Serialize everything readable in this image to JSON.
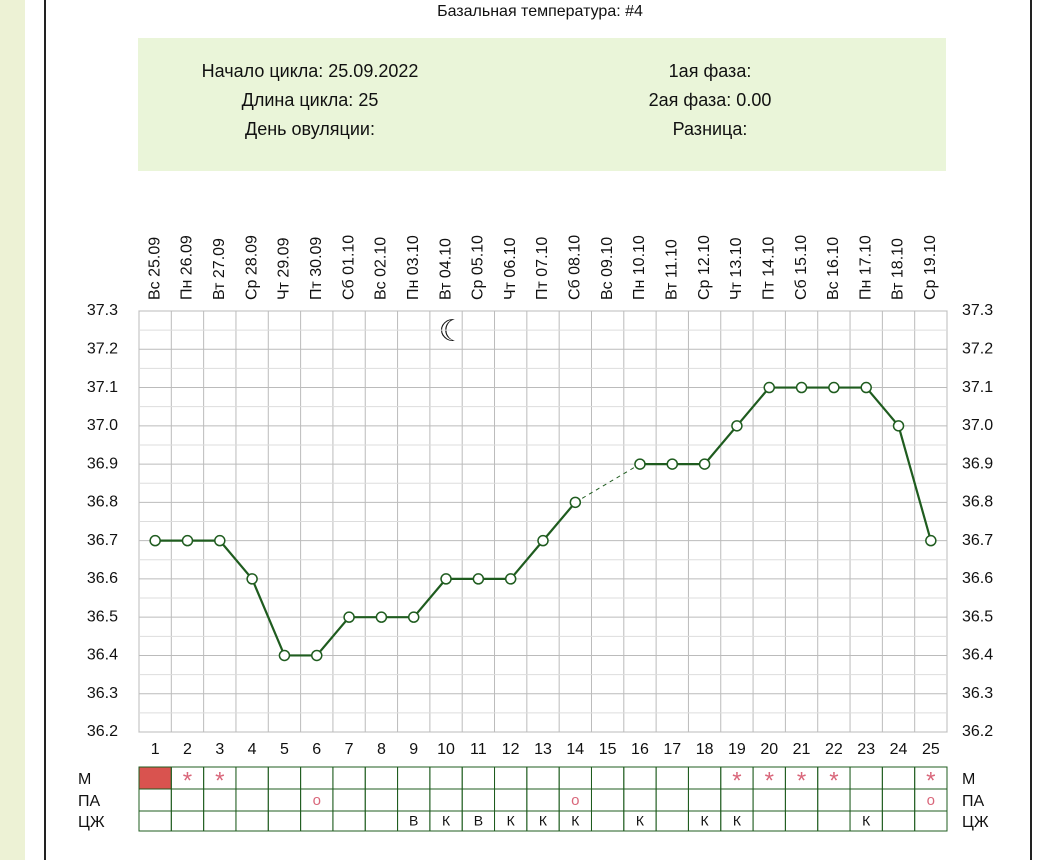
{
  "chart_data": {
    "type": "line",
    "title": "Базальная температура: #4",
    "info_left": [
      "Начало цикла: 25.09.2022",
      "Длина цикла: 25",
      "День овуляции:"
    ],
    "info_right": [
      "1ая фаза:",
      "2ая фаза: 0.00",
      "Разница:"
    ],
    "categories": [
      "Вс 25.09",
      "Пн 26.09",
      "Вт 27.09",
      "Ср 28.09",
      "Чт 29.09",
      "Пт 30.09",
      "Сб 01.10",
      "Вс 02.10",
      "Пн 03.10",
      "Вт 04.10",
      "Ср 05.10",
      "Чт 06.10",
      "Пт 07.10",
      "Сб 08.10",
      "Вс 09.10",
      "Пн 10.10",
      "Вт 11.10",
      "Ср 12.10",
      "Чт 13.10",
      "Пт 14.10",
      "Сб 15.10",
      "Вс 16.10",
      "Пн 17.10",
      "Вт 18.10",
      "Ср 19.10"
    ],
    "day_numbers": [
      1,
      2,
      3,
      4,
      5,
      6,
      7,
      8,
      9,
      10,
      11,
      12,
      13,
      14,
      15,
      16,
      17,
      18,
      19,
      20,
      21,
      22,
      23,
      24,
      25
    ],
    "values": [
      36.7,
      36.7,
      36.7,
      36.6,
      36.4,
      36.4,
      36.5,
      36.5,
      36.5,
      36.6,
      36.6,
      36.6,
      36.7,
      36.8,
      null,
      36.9,
      36.9,
      36.9,
      37.0,
      37.1,
      37.1,
      37.1,
      37.1,
      37.0,
      36.7
    ],
    "color": "#1f5c1f",
    "ylim": [
      36.2,
      37.3
    ],
    "yticks": [
      36.2,
      36.3,
      36.4,
      36.5,
      36.6,
      36.7,
      36.8,
      36.9,
      {
        "value": 37,
        "label": "37.0"
      },
      37.1,
      37.2,
      37.3
    ],
    "grid": true,
    "rows": [
      {
        "label": "М",
        "filled_days": [
          1
        ],
        "fill_color": "#d9534f",
        "cells": [
          null,
          "*",
          "*",
          null,
          null,
          null,
          null,
          null,
          null,
          null,
          null,
          null,
          null,
          null,
          null,
          null,
          null,
          null,
          "*",
          "*",
          "*",
          "*",
          null,
          null,
          "*"
        ]
      },
      {
        "label": "ПА",
        "cells": [
          null,
          null,
          null,
          null,
          null,
          "o",
          null,
          null,
          null,
          null,
          null,
          null,
          null,
          "o",
          null,
          null,
          null,
          null,
          null,
          null,
          null,
          null,
          null,
          null,
          "o"
        ]
      },
      {
        "label": "ЦЖ",
        "cells": [
          null,
          null,
          null,
          null,
          null,
          null,
          null,
          null,
          "В",
          "К",
          "В",
          "К",
          "К",
          "К",
          null,
          "К",
          null,
          "К",
          "К",
          null,
          null,
          null,
          "К",
          null,
          null
        ]
      }
    ]
  }
}
